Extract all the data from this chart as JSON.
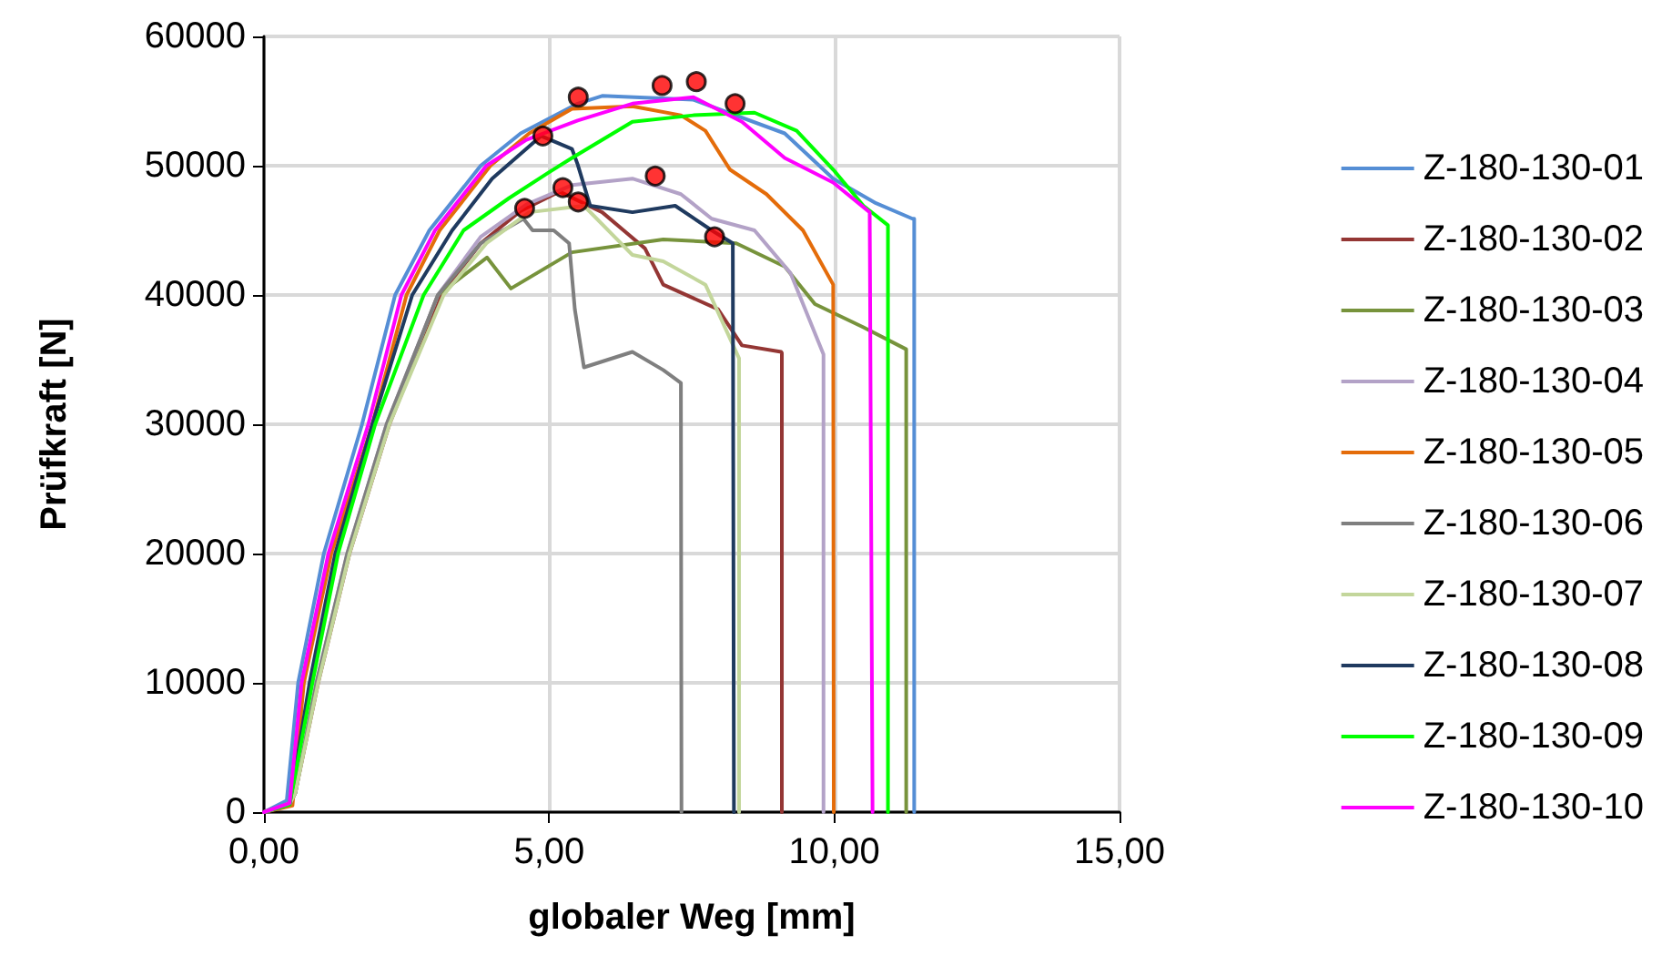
{
  "chart_data": {
    "type": "line",
    "xlabel": "globaler Weg [mm]",
    "ylabel": "Prüfkraft [N]",
    "xlim": [
      0,
      15
    ],
    "xticks": [
      {
        "value": 0,
        "label": "0,00"
      },
      {
        "value": 5,
        "label": "5,00"
      },
      {
        "value": 10,
        "label": "10,00"
      },
      {
        "value": 15,
        "label": "15,00"
      }
    ],
    "ylim": [
      0,
      60000
    ],
    "yticks": [
      0,
      10000,
      20000,
      30000,
      40000,
      50000,
      60000
    ],
    "grid": true,
    "legend": "right",
    "marker": "none",
    "line_style": "solid",
    "series": [
      {
        "name": "Z-180-130-01",
        "color": "#558ed5",
        "x": [
          0,
          0.4,
          0.6,
          1.05,
          1.72,
          2.3,
          2.9,
          3.8,
          4.5,
          5.5,
          5.93,
          7.53,
          9.13,
          9.98,
          10.73,
          11.37,
          11.4,
          11.4
        ],
        "values": [
          0,
          900,
          10000,
          20000,
          30000,
          40000,
          45000,
          50000,
          52500,
          54800,
          55400,
          55100,
          52500,
          49000,
          47100,
          45900,
          45900,
          0
        ]
      },
      {
        "name": "Z-180-130-02",
        "color": "#943634",
        "x": [
          0,
          0.45,
          0.55,
          0.95,
          1.5,
          2.2,
          3.1,
          3.8,
          4.5,
          5.18,
          5.93,
          6.68,
          7.0,
          7.96,
          8.38,
          9.07,
          9.08,
          9.08
        ],
        "values": [
          0,
          600,
          1500,
          10000,
          20000,
          30000,
          40000,
          44000,
          46500,
          48000,
          46400,
          43600,
          40800,
          38900,
          36100,
          35600,
          35500,
          0
        ]
      },
      {
        "name": "Z-180-130-03",
        "color": "#77933c",
        "x": [
          0,
          0.45,
          0.55,
          0.93,
          1.47,
          2.17,
          3.05,
          3.91,
          4.33,
          5.4,
          7.0,
          8.28,
          9.13,
          9.66,
          10.51,
          11.26,
          11.26
        ],
        "values": [
          0,
          600,
          1500,
          10000,
          20000,
          30000,
          40000,
          42900,
          40500,
          43300,
          44300,
          44000,
          42200,
          39300,
          37500,
          35800,
          0
        ]
      },
      {
        "name": "Z-180-130-04",
        "color": "#b3a2c7",
        "x": [
          0,
          0.45,
          0.55,
          0.92,
          1.46,
          2.15,
          3.05,
          3.8,
          4.6,
          5.4,
          6.46,
          7.31,
          7.85,
          8.6,
          9.23,
          9.81,
          9.81
        ],
        "values": [
          0,
          600,
          1500,
          10000,
          20000,
          30000,
          40000,
          44500,
          47000,
          48500,
          49000,
          47800,
          45900,
          45000,
          41700,
          35400,
          0
        ]
      },
      {
        "name": "Z-180-130-05",
        "color": "#e46c0a",
        "x": [
          0,
          0.5,
          0.7,
          1.18,
          1.9,
          2.5,
          3.08,
          3.97,
          4.65,
          5.4,
          6.46,
          7.31,
          7.74,
          8.17,
          8.81,
          9.45,
          9.98,
          9.99
        ],
        "values": [
          0,
          500,
          10000,
          20000,
          30000,
          40000,
          45000,
          50000,
          52500,
          54400,
          54600,
          53900,
          52700,
          49700,
          47800,
          45000,
          40800,
          0
        ]
      },
      {
        "name": "Z-180-130-06",
        "color": "#7f7f7f",
        "x": [
          0,
          0.45,
          0.55,
          0.92,
          1.46,
          2.15,
          3.05,
          3.8,
          4.55,
          4.71,
          5.08,
          5.35,
          5.45,
          5.61,
          6.46,
          7.0,
          7.31,
          7.32
        ],
        "values": [
          0,
          600,
          1500,
          10000,
          20000,
          30000,
          40000,
          44000,
          45900,
          45000,
          45000,
          44000,
          38900,
          34400,
          35600,
          34200,
          33200,
          0
        ]
      },
      {
        "name": "Z-180-130-07",
        "color": "#c3d69b",
        "x": [
          0,
          0.45,
          0.55,
          0.95,
          1.5,
          2.2,
          3.15,
          3.9,
          4.65,
          5.61,
          6.46,
          7.0,
          7.74,
          8.33,
          8.33
        ],
        "values": [
          0,
          600,
          1500,
          10000,
          20000,
          30000,
          40000,
          44000,
          46400,
          46900,
          43100,
          42600,
          40800,
          35100,
          0
        ]
      },
      {
        "name": "Z-180-130-08",
        "color": "#1f3a5f",
        "x": [
          0,
          0.45,
          0.8,
          1.25,
          1.9,
          2.6,
          3.3,
          4.0,
          4.86,
          5.4,
          5.5,
          5.72,
          6.46,
          7.21,
          7.85,
          8.22,
          8.24
        ],
        "values": [
          0,
          600,
          10000,
          20000,
          30000,
          40000,
          45000,
          49000,
          52300,
          51300,
          50100,
          46900,
          46400,
          46900,
          45000,
          44000,
          0
        ]
      },
      {
        "name": "Z-180-130-09",
        "color": "#00ff00",
        "x": [
          0,
          0.45,
          0.85,
          1.3,
          1.95,
          2.8,
          3.5,
          4.3,
          5.0,
          5.4,
          6.46,
          7.53,
          8.6,
          9.34,
          9.98,
          10.51,
          10.94,
          10.94
        ],
        "values": [
          0,
          600,
          10000,
          20000,
          30000,
          40000,
          45000,
          47500,
          49500,
          50600,
          53400,
          53900,
          54100,
          52700,
          49700,
          46900,
          45400,
          0
        ]
      },
      {
        "name": "Z-180-130-10",
        "color": "#ff00ff",
        "x": [
          0,
          0.45,
          0.66,
          1.13,
          1.83,
          2.41,
          3.0,
          3.9,
          4.6,
          5.5,
          6.46,
          7.53,
          8.38,
          9.13,
          9.98,
          10.62,
          10.67
        ],
        "values": [
          0,
          700,
          10000,
          20000,
          30000,
          40000,
          45000,
          50000,
          52000,
          53500,
          54800,
          55300,
          53400,
          50600,
          48700,
          46400,
          0
        ]
      },
      {
        "type": "scatter",
        "marker": "circle",
        "color": "#ff0000",
        "x": [
          7.58,
          5.51,
          6.98,
          8.26,
          4.89,
          6.86,
          5.24,
          5.51,
          4.57,
          7.9
        ],
        "values": [
          56500,
          55300,
          56200,
          54800,
          52300,
          49200,
          48300,
          47200,
          46700,
          44500
        ]
      }
    ]
  }
}
